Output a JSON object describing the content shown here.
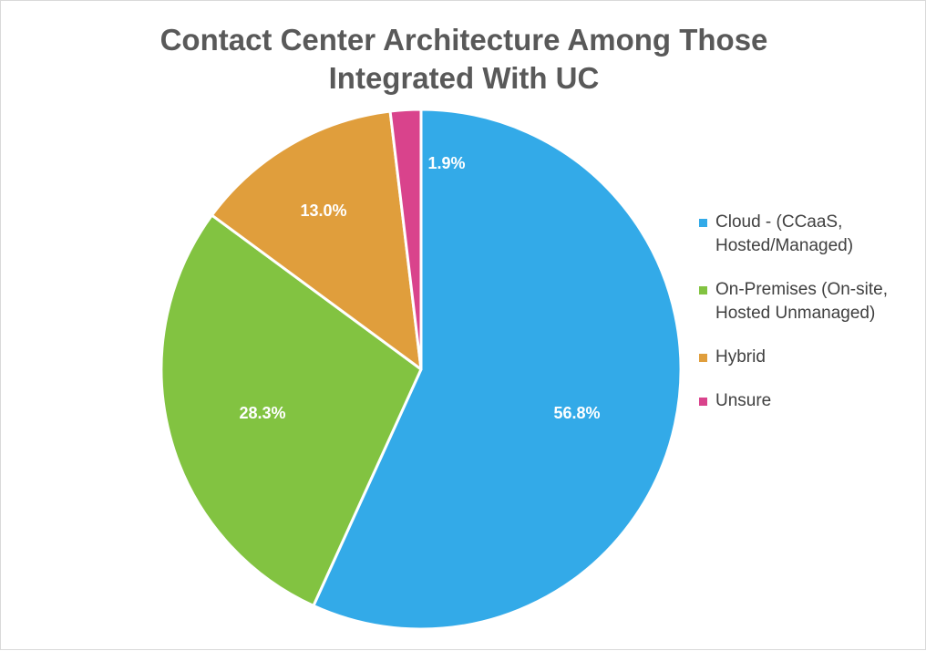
{
  "chart_data": {
    "type": "pie",
    "title_lines": [
      "Contact Center Architecture Among Those",
      "Integrated With UC"
    ],
    "start_angle_deg": 0,
    "direction": "clockwise",
    "slices": [
      {
        "name_lines": [
          "Cloud - (CCaaS,",
          "Hosted/Managed)"
        ],
        "value": 56.8,
        "label": "56.8%",
        "color": "#33aae8"
      },
      {
        "name_lines": [
          "On-Premises (On-site,",
          "Hosted Unmanaged)"
        ],
        "value": 28.3,
        "label": "28.3%",
        "color": "#82c341"
      },
      {
        "name_lines": [
          "Hybrid"
        ],
        "value": 13.0,
        "label": "13.0%",
        "color": "#e09e3c"
      },
      {
        "name_lines": [
          "Unsure"
        ],
        "value": 1.9,
        "label": "1.9%",
        "color": "#d9438c"
      }
    ],
    "legend_position": "right"
  }
}
